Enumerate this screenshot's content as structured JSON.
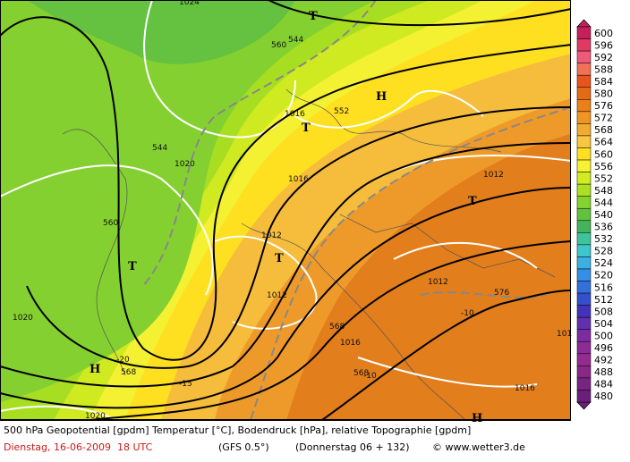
{
  "colorbar": {
    "levels": [
      600,
      596,
      592,
      588,
      584,
      580,
      576,
      572,
      568,
      564,
      560,
      556,
      552,
      548,
      544,
      540,
      536,
      532,
      528,
      524,
      520,
      516,
      512,
      508,
      504,
      500,
      496,
      492,
      488,
      484,
      480
    ],
    "colors": [
      "#c4205c",
      "#e03a64",
      "#ee5a78",
      "#f07058",
      "#e8541c",
      "#e46a14",
      "#ea8018",
      "#f09424",
      "#f2aa30",
      "#f8c640",
      "#ffe020",
      "#f6f232",
      "#d2ec22",
      "#aee022",
      "#86d22e",
      "#62c23e",
      "#44b45c",
      "#3ec49a",
      "#3ec6cc",
      "#3cb0e2",
      "#3490e6",
      "#3470dc",
      "#3450cc",
      "#4432bc",
      "#6230ae",
      "#7c2ca0",
      "#8c2c94",
      "#962a8e",
      "#8a2888",
      "#7a2482",
      "#6a207a"
    ]
  },
  "map_labels": [
    "1024",
    "T",
    "560",
    "544",
    "H",
    "1016",
    "T",
    "552",
    "544",
    "1020",
    "1016",
    "560",
    "T",
    "1012",
    "T",
    "1012",
    "1012",
    "568",
    "1012",
    "T",
    "576",
    "-10",
    "1020",
    "568",
    "1016",
    "-20",
    "H",
    "568",
    "-15",
    "-10",
    "1016",
    "1020",
    "101",
    "H"
  ],
  "caption": {
    "line1": "500 hPa Geopotential [gpdm] Temperatur [°C], Bodendruck [hPa], relative Topographie [gpdm]",
    "date": "Dienstag, 16-06-2009  18 UTC",
    "model": "(GFS 0.5°)",
    "run": "(Donnerstag 06 + 132)",
    "source": "© www.wetter3.de"
  }
}
